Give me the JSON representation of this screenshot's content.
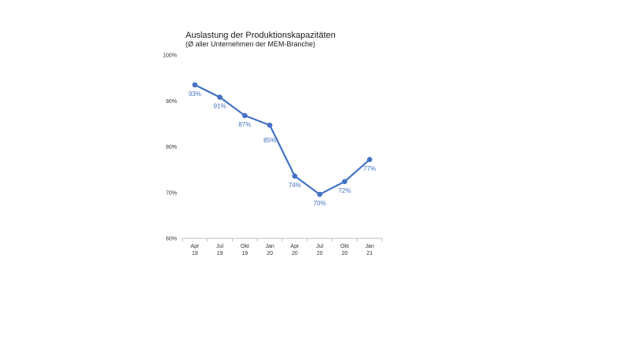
{
  "chart_data": {
    "type": "line",
    "title": "Auslastung der Produktionskapazitäten",
    "subtitle": "(Ø aller Unternehmen der MEM-Branche)",
    "categories": [
      [
        "Apr",
        "19"
      ],
      [
        "Jul",
        "19"
      ],
      [
        "Okt",
        "19"
      ],
      [
        "Jan",
        "20"
      ],
      [
        "Apr",
        "20"
      ],
      [
        "Jul",
        "20"
      ],
      [
        "Okt",
        "20"
      ],
      [
        "Jan",
        "21"
      ]
    ],
    "values": [
      93.5,
      90.8,
      86.8,
      84.7,
      73.6,
      69.6,
      72.4,
      77.2
    ],
    "data_labels": [
      "93%",
      "91%",
      "87%",
      "85%",
      "74%",
      "70%",
      "72%",
      "77%"
    ],
    "yticks": [
      "100%",
      "90%",
      "80%",
      "70%",
      "60%"
    ],
    "ylim": [
      60,
      100
    ],
    "grid": false,
    "legend": "none",
    "line_color": "#4472C4"
  }
}
